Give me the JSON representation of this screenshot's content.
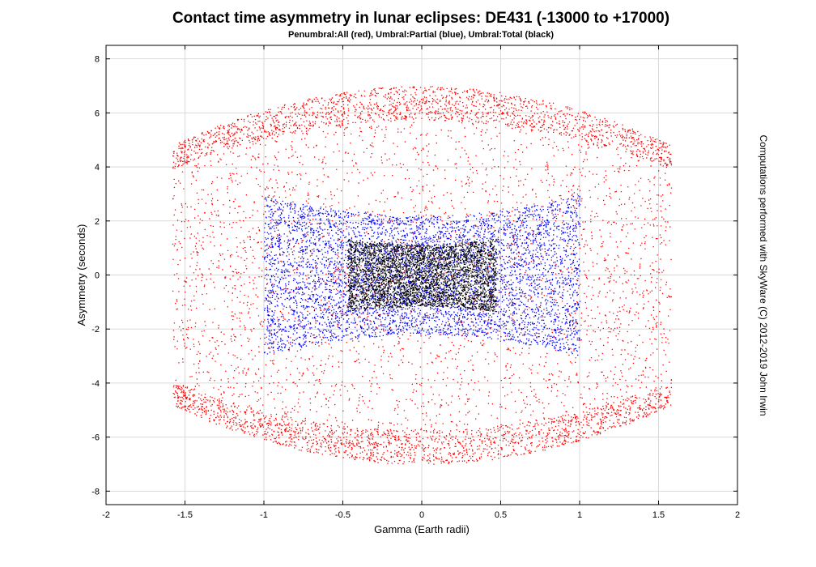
{
  "chart_data": {
    "type": "scatter",
    "title": "Contact time asymmetry in lunar eclipses: DE431 (-13000 to +17000)",
    "subtitle": "Penumbral:All (red), Umbral:Partial (blue), Umbral:Total (black)",
    "xlabel": "Gamma (Earth radii)",
    "ylabel": "Asymmetry (seconds)",
    "xlim": [
      -2,
      2
    ],
    "ylim": [
      -8.5,
      8.5
    ],
    "xticks": [
      -2,
      -1.5,
      -1,
      -0.5,
      0,
      0.5,
      1,
      1.5,
      2
    ],
    "xtick_labels": [
      "-2",
      "-1.5",
      "-1",
      "-0.5",
      "0",
      "0.5",
      "1",
      "1.5",
      "2"
    ],
    "yticks": [
      -8,
      -6,
      -4,
      -2,
      0,
      2,
      4,
      6,
      8
    ],
    "ytick_labels": [
      "-8",
      "-6",
      "-4",
      "-2",
      "0",
      "2",
      "4",
      "6",
      "8"
    ],
    "grid": true,
    "legend": "none (series described in subtitle)",
    "series": [
      {
        "name": "Penumbral:All",
        "color": "#ff0000",
        "x_range": [
          -1.58,
          1.58
        ],
        "y_outer_edge_at_gamma_0": 7.0,
        "y_outer_edge_at_gamma_max": 4.8,
        "y_inner_edge_at_gamma_0": 0.0,
        "point_count_estimate": 60000
      },
      {
        "name": "Umbral:Partial",
        "color": "#0000ff",
        "x_range": [
          -1.0,
          1.0
        ],
        "y_outer_edge_at_gamma_0": 2.2,
        "y_outer_edge_at_gamma_max": 3.0,
        "point_count_estimate": 25000
      },
      {
        "name": "Umbral:Total",
        "color": "#000000",
        "x_range": [
          -0.47,
          0.47
        ],
        "y_outer_edge_at_gamma_0": 1.15,
        "y_outer_edge_at_gamma_max": 1.35,
        "point_count_estimate": 12000
      }
    ]
  },
  "credit": "Computations performed with SkyWare (C) 2012-2019 John Irwin"
}
